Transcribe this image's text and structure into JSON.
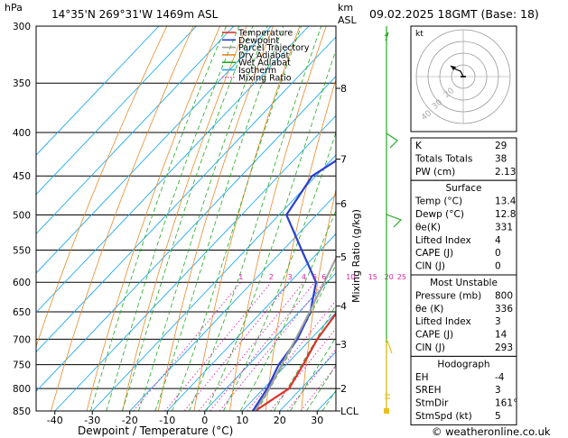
{
  "header": {
    "location": "14°35'N  269°31'W  1469m  ASL",
    "datetime": "09.02.2025  18GMT  (Base: 18)",
    "hpa_unit": "hPa",
    "km_unit": "km",
    "asl_unit": "ASL"
  },
  "legend": [
    {
      "label": "Temperature",
      "color": "#e0302a",
      "style": "solid"
    },
    {
      "label": "Dewpoint",
      "color": "#2a3fd0",
      "style": "solid"
    },
    {
      "label": "Parcel Trajectory",
      "color": "#a0a0a0",
      "style": "solid"
    },
    {
      "label": "Dry Adiabat",
      "color": "#e88a2a",
      "style": "solid"
    },
    {
      "label": "Wet Adiabat",
      "color": "#22aa22",
      "style": "solid"
    },
    {
      "label": "Isotherm",
      "color": "#22aaee",
      "style": "solid"
    },
    {
      "label": "Mixing Ratio",
      "color": "#dd22aa",
      "style": "dotted"
    }
  ],
  "chart_data": {
    "type": "line",
    "xlabel": "Dewpoint / Temperature (°C)",
    "ylabel_right": "Mixing Ratio (g/kg)",
    "xlim": [
      -45,
      35
    ],
    "pressure_range": [
      300,
      850
    ],
    "x_ticks": [
      -40,
      -30,
      -20,
      -10,
      0,
      10,
      20,
      30
    ],
    "pressure_ticks": [
      300,
      350,
      400,
      450,
      500,
      550,
      600,
      650,
      700,
      750,
      800,
      850
    ],
    "km_ticks": [
      {
        "label": "8",
        "p": 355
      },
      {
        "label": "7",
        "p": 430
      },
      {
        "label": "6",
        "p": 485
      },
      {
        "label": "5",
        "p": 560
      },
      {
        "label": "4",
        "p": 640
      },
      {
        "label": "3",
        "p": 710
      },
      {
        "label": "2",
        "p": 800
      },
      {
        "label": "LCL",
        "p": 850
      }
    ],
    "mixing_ratio_labels": [
      "1",
      "2",
      "3",
      "4",
      "5",
      "6",
      "10",
      "15",
      "20",
      "25"
    ],
    "mixing_ratio_label_p": 600,
    "series": [
      {
        "name": "Temperature",
        "color": "#e0302a",
        "points": [
          [
            850,
            13.4
          ],
          [
            800,
            16.8
          ],
          [
            750,
            14.5
          ],
          [
            700,
            11.8
          ],
          [
            650,
            10.2
          ],
          [
            600,
            8.0
          ],
          [
            550,
            5.0
          ],
          [
            500,
            1.0
          ],
          [
            450,
            -3.8
          ],
          [
            400,
            -9.5
          ],
          [
            350,
            -16.2
          ],
          [
            300,
            -23.5
          ]
        ]
      },
      {
        "name": "Dewpoint",
        "color": "#2a3fd0",
        "points": [
          [
            850,
            12.8
          ],
          [
            800,
            11.0
          ],
          [
            750,
            8.0
          ],
          [
            700,
            6.5
          ],
          [
            650,
            3.0
          ],
          [
            600,
            -3.0
          ],
          [
            550,
            -15.0
          ],
          [
            500,
            -28.0
          ],
          [
            450,
            -31.0
          ],
          [
            400,
            -24.0
          ],
          [
            350,
            -28.0
          ],
          [
            300,
            -31.0
          ]
        ]
      },
      {
        "name": "Parcel Trajectory",
        "color": "#a0a0a0",
        "points": [
          [
            850,
            13.4
          ],
          [
            800,
            11.5
          ],
          [
            750,
            8.8
          ],
          [
            700,
            6.0
          ],
          [
            650,
            2.8
          ],
          [
            600,
            -0.8
          ],
          [
            550,
            -4.8
          ],
          [
            500,
            -9.5
          ],
          [
            450,
            -14.8
          ],
          [
            400,
            -20.8
          ],
          [
            350,
            -27.5
          ],
          [
            300,
            -35.0
          ]
        ]
      }
    ],
    "grid": true
  },
  "hodograph": {
    "label": "kt",
    "ring_labels": [
      "40",
      "30",
      "20"
    ]
  },
  "indices": {
    "rows": [
      {
        "label": "K",
        "value": "29"
      },
      {
        "label": "Totals Totals",
        "value": "38"
      },
      {
        "label": "PW (cm)",
        "value": "2.13"
      }
    ]
  },
  "surface": {
    "title": "Surface",
    "rows": [
      {
        "label": "Temp (°C)",
        "value": "13.4"
      },
      {
        "label": "Dewp (°C)",
        "value": "12.8"
      },
      {
        "label": "θe(K)",
        "value": "331"
      },
      {
        "label": "Lifted Index",
        "value": "4"
      },
      {
        "label": "CAPE (J)",
        "value": "0"
      },
      {
        "label": "CIN (J)",
        "value": "0"
      }
    ]
  },
  "most_unstable": {
    "title": "Most Unstable",
    "rows": [
      {
        "label": "Pressure (mb)",
        "value": "800"
      },
      {
        "label": "θe (K)",
        "value": "336"
      },
      {
        "label": "Lifted Index",
        "value": "3"
      },
      {
        "label": "CAPE (J)",
        "value": "14"
      },
      {
        "label": "CIN (J)",
        "value": "293"
      }
    ]
  },
  "hodograph_table": {
    "title": "Hodograph",
    "rows": [
      {
        "label": "EH",
        "value": "-4"
      },
      {
        "label": "SREH",
        "value": "3"
      },
      {
        "label": "StmDir",
        "value": "161°"
      },
      {
        "label": "StmSpd (kt)",
        "value": "5"
      }
    ]
  },
  "footer": {
    "copyright": "© weatheronline.co.uk"
  }
}
